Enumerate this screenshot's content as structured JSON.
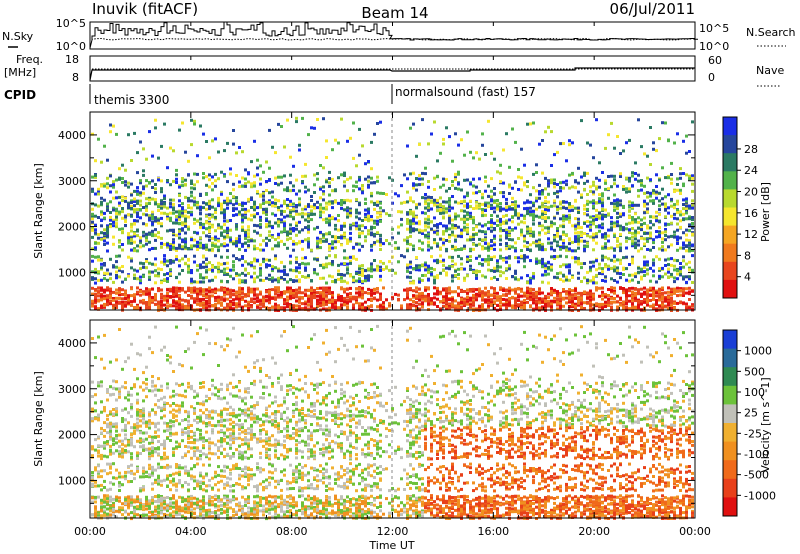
{
  "header": {
    "station": "Inuvik (fitACF)",
    "beam": "Beam 14",
    "date": "06/Jul/2011"
  },
  "panels": {
    "nsky_label": "N.Sky",
    "nsearch_label": "N.Search",
    "nsky_ticks": [
      "10^5",
      "10^0"
    ],
    "nsearch_ticks": [
      "10^5",
      "10^0"
    ],
    "freq_label": "Freq.",
    "freq_unit": "[MHz]",
    "freq_ticks": [
      "18",
      "8"
    ],
    "nave_label": "Nave",
    "nave_ticks": [
      "60",
      "0"
    ],
    "cpid_label": "CPID",
    "cpid_modes": [
      "themis 3300",
      "normalsound (fast) 157"
    ]
  },
  "chart_data": [
    {
      "type": "heatmap",
      "title": "",
      "xlabel": "",
      "ylabel": "Slant Range [km]",
      "x_ticks": [
        "00:00",
        "04:00",
        "08:00",
        "12:00",
        "16:00",
        "20:00",
        "00:00"
      ],
      "y_ticks": [
        1000,
        2000,
        3000,
        4000
      ],
      "ylim": [
        180,
        4500
      ],
      "colorbar": {
        "label": "Power [dB]",
        "ticks": [
          "4",
          "8",
          "12",
          "16",
          "20",
          "24",
          "28"
        ],
        "colors": [
          "#1a2ee6",
          "#26469c",
          "#2b7a63",
          "#52b24a",
          "#b8d92e",
          "#f5e62e",
          "#f5a623",
          "#f07a1e",
          "#e8461e",
          "#e01010"
        ]
      }
    },
    {
      "type": "heatmap",
      "title": "",
      "xlabel": "Time UT",
      "ylabel": "Slant Range [km]",
      "x_ticks": [
        "00:00",
        "04:00",
        "08:00",
        "12:00",
        "16:00",
        "20:00",
        "00:00"
      ],
      "y_ticks": [
        1000,
        2000,
        3000,
        4000
      ],
      "ylim": [
        180,
        4500
      ],
      "colorbar": {
        "label": "Velocity [m s^-1]",
        "ticks": [
          "1000",
          "500",
          "100",
          "25",
          "-25",
          "-100",
          "-500",
          "-1000"
        ],
        "colors": [
          "#1a3fd6",
          "#2a6b9a",
          "#2f8a52",
          "#6cc23a",
          "#c0c0b8",
          "#f0b030",
          "#f09020",
          "#f06a1a",
          "#e8401a",
          "#e01010"
        ]
      }
    }
  ]
}
